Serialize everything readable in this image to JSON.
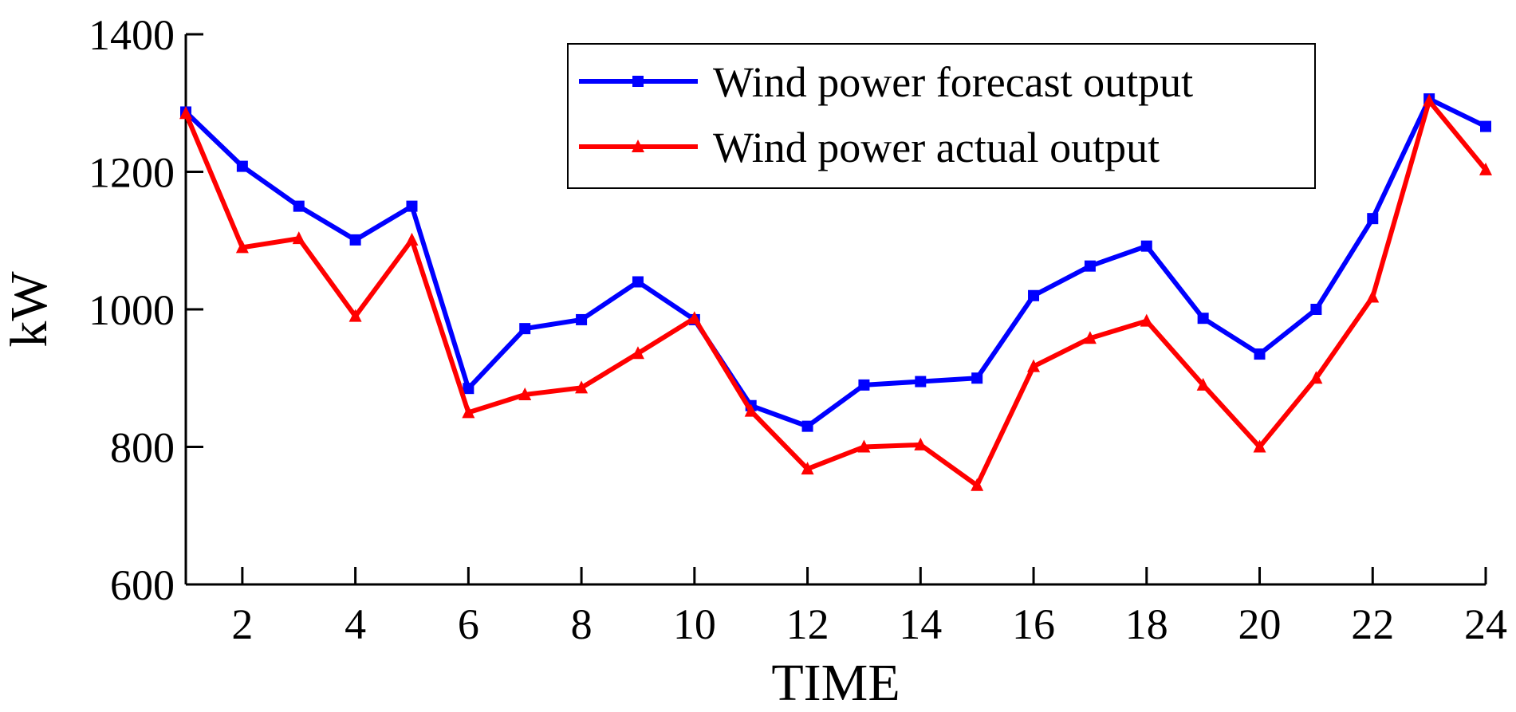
{
  "chart_data": {
    "type": "line",
    "title": "",
    "xlabel": "TIME",
    "ylabel": "kW",
    "x": [
      1,
      2,
      3,
      4,
      5,
      6,
      7,
      8,
      9,
      10,
      11,
      12,
      13,
      14,
      15,
      16,
      17,
      18,
      19,
      20,
      21,
      22,
      23,
      24
    ],
    "xlim": [
      1,
      24
    ],
    "ylim": [
      600,
      1400
    ],
    "xticks": [
      2,
      4,
      6,
      8,
      10,
      12,
      14,
      16,
      18,
      20,
      22,
      24
    ],
    "yticks": [
      600,
      800,
      1000,
      1200,
      1400
    ],
    "grid": false,
    "legend_position": "top-right",
    "series": [
      {
        "name": "Wind power forecast output",
        "color": "#0000ff",
        "marker": "square",
        "values": [
          1287,
          1208,
          1150,
          1101,
          1150,
          885,
          972,
          985,
          1040,
          985,
          860,
          830,
          890,
          895,
          900,
          1020,
          1063,
          1092,
          987,
          935,
          1000,
          1132,
          1306,
          1266
        ]
      },
      {
        "name": "Wind power actual output",
        "color": "#ff0000",
        "marker": "triangle",
        "values": [
          1285,
          1090,
          1103,
          990,
          1101,
          850,
          876,
          886,
          936,
          987,
          852,
          768,
          800,
          803,
          744,
          917,
          958,
          983,
          890,
          800,
          900,
          1018,
          1303,
          1203
        ]
      }
    ]
  }
}
